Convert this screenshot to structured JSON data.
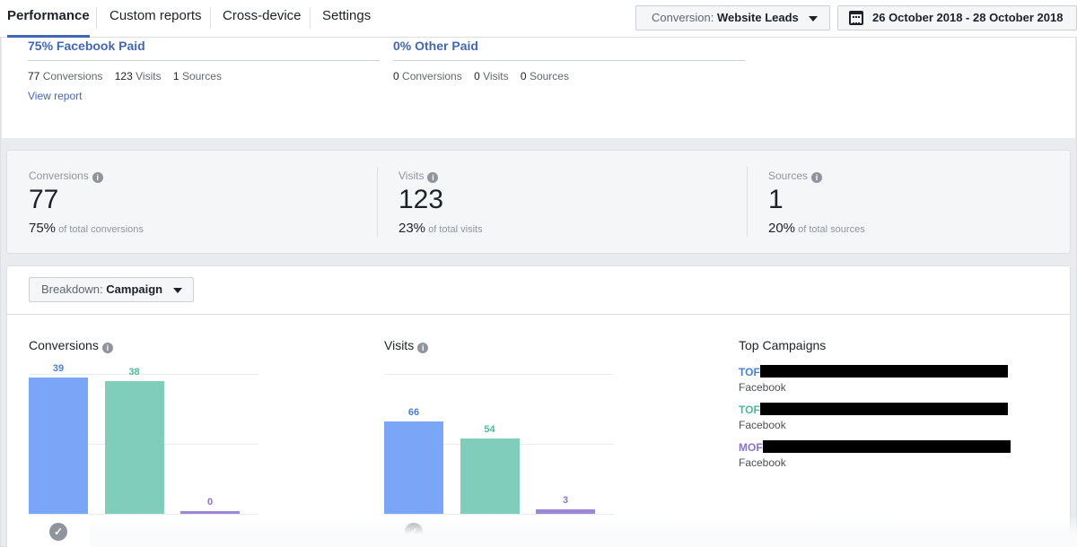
{
  "nav": {
    "tabs": [
      {
        "label": "Performance",
        "active": true
      },
      {
        "label": "Custom reports",
        "active": false
      },
      {
        "label": "Cross-device",
        "active": false
      },
      {
        "label": "Settings",
        "active": false
      }
    ],
    "conversion_prefix": "Conversion:",
    "conversion_value": "Website Leads",
    "date_range": "26 October 2018 - 28 October 2018"
  },
  "sources": [
    {
      "title": "75% Facebook Paid",
      "conversions": "77",
      "conversions_label": "Conversions",
      "visits": "123",
      "visits_label": "Visits",
      "sources": "1",
      "sources_label": "Sources",
      "link": "View report"
    },
    {
      "title": "0% Other Paid",
      "conversions": "0",
      "conversions_label": "Conversions",
      "visits": "0",
      "visits_label": "Visits",
      "sources": "0",
      "sources_label": "Sources"
    }
  ],
  "kpis": [
    {
      "label": "Conversions",
      "value": "77",
      "pct": "75%",
      "sub": "of total conversions"
    },
    {
      "label": "Visits",
      "value": "123",
      "pct": "23%",
      "sub": "of total visits"
    },
    {
      "label": "Sources",
      "value": "1",
      "pct": "20%",
      "sub": "of total sources"
    }
  ],
  "breakdown": {
    "prefix": "Breakdown:",
    "value": "Campaign"
  },
  "conversions_chart_title": "Conversions",
  "visits_chart_title": "Visits",
  "top_campaigns_title": "Top Campaigns",
  "campaigns": [
    {
      "prefix": "TOF",
      "platform": "Facebook",
      "color": "#4a7fd4"
    },
    {
      "prefix": "TOF",
      "platform": "Facebook",
      "color": "#4fb79c"
    },
    {
      "prefix": "MOF",
      "platform": "Facebook",
      "color": "#8c72cb"
    }
  ],
  "colors": {
    "blue": "#7ba5f7",
    "teal": "#80cdbb",
    "purple": "#9b87d6",
    "link": "#4267b2"
  },
  "chart_data": [
    {
      "type": "bar",
      "title": "Conversions",
      "categories": [
        "TOF",
        "TOF",
        "MOF"
      ],
      "values": [
        39,
        38,
        0
      ],
      "ylim": [
        0,
        40
      ],
      "grid": true
    },
    {
      "type": "bar",
      "title": "Visits",
      "categories": [
        "TOF",
        "TOF",
        "MOF"
      ],
      "values": [
        66,
        54,
        3
      ],
      "ylim": [
        0,
        100
      ],
      "grid": true
    }
  ]
}
